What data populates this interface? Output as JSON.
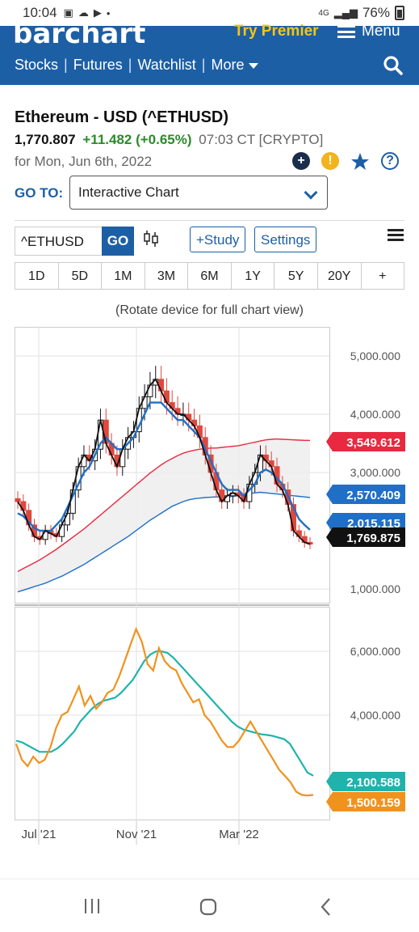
{
  "status": {
    "time": "10:04",
    "dot": "•",
    "net": "4G",
    "battery": "76%"
  },
  "header": {
    "logo": "barchart",
    "premier": "Try Premier",
    "menu": "Menu",
    "nav": [
      "Stocks",
      "Futures",
      "Watchlist",
      "More"
    ]
  },
  "quote": {
    "title": "Ethereum - USD (^ETHUSD)",
    "price": "1,770.807",
    "change": "+11.482 (+0.65%)",
    "time": "07:03 CT [CRYPTO]",
    "date": "for Mon, Jun 6th, 2022"
  },
  "goto": {
    "label": "GO TO:",
    "value": "Interactive Chart"
  },
  "toolbar": {
    "symbol": "^ETHUSD",
    "go": "GO",
    "study": "+Study",
    "settings": "Settings"
  },
  "periods": [
    "1D",
    "5D",
    "1M",
    "3M",
    "6M",
    "1Y",
    "5Y",
    "20Y",
    "+"
  ],
  "rotate_hint": "(Rotate device for full chart view)",
  "colors": {
    "brand": "#1d5fa5",
    "up": "#111111",
    "down": "#e0483e",
    "ma_fast": "#1f6fc7",
    "ma_red": "#e8293f",
    "orange": "#f0921e",
    "teal": "#1fb3ac"
  },
  "chart_data": [
    {
      "type": "candlestick",
      "title": "",
      "x_ticks": [
        "Jul '21",
        "Nov '21",
        "Mar '22"
      ],
      "y_ticks": [
        5000,
        4000,
        3000,
        1000
      ],
      "y_tick_labels": [
        "5,000.000",
        "4,000.000",
        "3,000.000",
        "1,000.000"
      ],
      "ylim": [
        750,
        5500
      ],
      "grid": true,
      "price_close": [
        2500,
        2350,
        2100,
        1900,
        1850,
        2000,
        1950,
        1900,
        2100,
        2300,
        2700,
        3100,
        3300,
        3200,
        3400,
        3900,
        3500,
        3300,
        3100,
        3400,
        3600,
        3700,
        4100,
        4300,
        4500,
        4600,
        4400,
        4200,
        4100,
        4000,
        4000,
        3900,
        3800,
        3600,
        3300,
        3000,
        2700,
        2500,
        2600,
        2650,
        2600,
        2500,
        2800,
        3000,
        3300,
        3200,
        3100,
        2800,
        2700,
        2450,
        2000,
        1900,
        1800,
        1770
      ],
      "series": [
        {
          "name": "",
          "values": [
            2300,
            2250,
            2150,
            2050,
            2000,
            2000,
            2000,
            2100,
            2200,
            2400,
            2600,
            2800,
            3000,
            3100,
            3300,
            3500,
            3600,
            3500,
            3400,
            3400,
            3500,
            3600,
            3800,
            4000,
            4200,
            4200,
            4200,
            4100,
            4000,
            3900,
            3900,
            3800,
            3700,
            3600,
            3400,
            3200,
            3000,
            2800,
            2700,
            2700,
            2700,
            2600,
            2700,
            2800,
            3000,
            3050,
            3000,
            2900,
            2800,
            2600,
            2400,
            2200,
            2100,
            2015
          ]
        },
        {
          "name": "",
          "values": [
            950,
            980,
            1010,
            1040,
            1070,
            1100,
            1140,
            1180,
            1220,
            1270,
            1320,
            1370,
            1420,
            1480,
            1540,
            1600,
            1660,
            1720,
            1780,
            1840,
            1900,
            1970,
            2040,
            2110,
            2180,
            2240,
            2300,
            2360,
            2420,
            2460,
            2500,
            2530,
            2550,
            2560,
            2570,
            2575,
            2580,
            2580,
            2585,
            2590,
            2600,
            2620,
            2640,
            2650,
            2660,
            2650,
            2640,
            2630,
            2620,
            2610,
            2600,
            2590,
            2580,
            2570
          ]
        },
        {
          "name": "",
          "values": [
            1300,
            1350,
            1400,
            1450,
            1500,
            1560,
            1620,
            1680,
            1750,
            1820,
            1890,
            1960,
            2030,
            2110,
            2190,
            2270,
            2350,
            2430,
            2510,
            2590,
            2670,
            2750,
            2830,
            2910,
            2990,
            3060,
            3130,
            3190,
            3240,
            3290,
            3330,
            3360,
            3380,
            3400,
            3410,
            3420,
            3420,
            3430,
            3440,
            3450,
            3460,
            3480,
            3500,
            3520,
            3540,
            3560,
            3570,
            3575,
            3570,
            3565,
            3560,
            3555,
            3552,
            3550
          ]
        }
      ],
      "price_tags": [
        "3,549.612",
        "2,570.409",
        "2,015.115",
        "1,769.875"
      ]
    },
    {
      "type": "line",
      "y_ticks": [
        6000,
        4000
      ],
      "y_tick_labels": [
        "6,000.000",
        "4,000.000"
      ],
      "ylim": [
        700,
        7400
      ],
      "grid": true,
      "series": [
        {
          "name": "",
          "values": [
            3100,
            2600,
            2400,
            2700,
            2500,
            2600,
            3000,
            3600,
            4000,
            4100,
            4500,
            4900,
            4300,
            4600,
            4200,
            4400,
            4700,
            4800,
            5200,
            5700,
            6200,
            6700,
            6300,
            5600,
            5400,
            6100,
            5700,
            5500,
            5400,
            5000,
            4700,
            4400,
            4500,
            4000,
            3800,
            3500,
            3200,
            3000,
            3000,
            3200,
            3500,
            3800,
            3500,
            3200,
            2900,
            2600,
            2300,
            2100,
            1900,
            1600,
            1500,
            1480,
            1500
          ]
        },
        {
          "name": "",
          "values": [
            3200,
            3150,
            3050,
            2950,
            2850,
            2850,
            2850,
            2950,
            3100,
            3300,
            3500,
            3800,
            4000,
            4200,
            4350,
            4450,
            4500,
            4550,
            4700,
            4900,
            5100,
            5400,
            5700,
            5900,
            6000,
            6000,
            5950,
            5800,
            5600,
            5400,
            5200,
            5000,
            4800,
            4600,
            4400,
            4200,
            4000,
            3800,
            3650,
            3550,
            3500,
            3450,
            3400,
            3380,
            3350,
            3300,
            3250,
            3100,
            2800,
            2500,
            2200,
            2100
          ]
        }
      ],
      "price_tags": [
        "2,100.588",
        "1,500.159"
      ]
    }
  ]
}
